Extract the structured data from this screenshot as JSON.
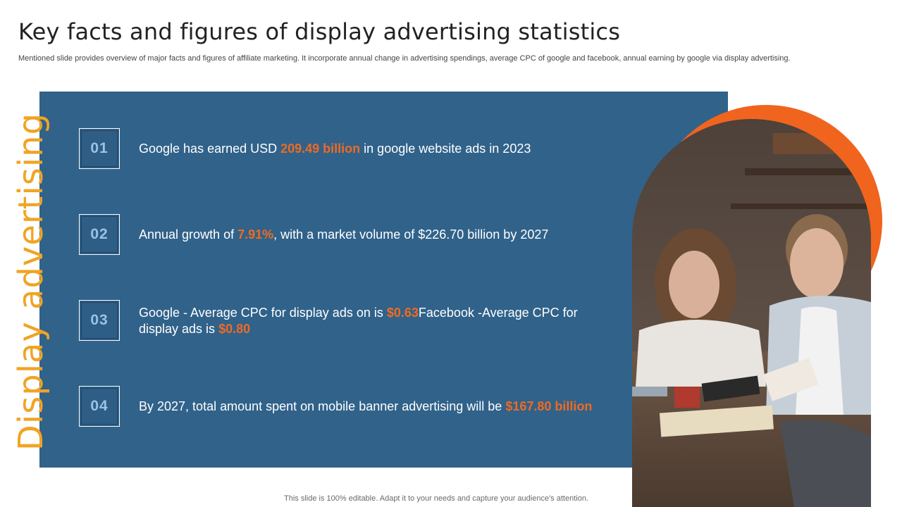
{
  "slide": {
    "title": "Key facts and figures of display advertising statistics",
    "subtitle": "Mentioned slide provides overview of major facts and figures of affiliate marketing. It incorporate annual change in advertising spendings, average CPC of google and facebook, annual earning by google via display advertising.",
    "side_label": "Display advertising",
    "footer": "This slide is 100% editable. Adapt it to your needs and capture your audience's attention."
  },
  "facts": [
    {
      "number": "01",
      "part1": "Google has earned USD ",
      "hl1": "209.49 billion",
      "part2": " in google website ads in 2023",
      "hl2": "",
      "part3": ""
    },
    {
      "number": "02",
      "part1": "Annual growth of ",
      "hl1": "7.91%",
      "part2": ", with a market volume of $226.70 billion by 2027",
      "hl2": "",
      "part3": ""
    },
    {
      "number": "03",
      "part1": "Google - Average CPC for display ads on is ",
      "hl1": "$0.63",
      "part2": "Facebook -Average CPC for display ads is ",
      "hl2": "$0.80",
      "part3": ""
    },
    {
      "number": "04",
      "part1": "By 2027, total amount spent on mobile banner advertising will be ",
      "hl1": "$167.80 billion",
      "part2": "",
      "hl2": "",
      "part3": ""
    }
  ],
  "colors": {
    "panel": "#30628a",
    "accent_orange": "#f06a22",
    "side_label": "#f0a424",
    "number_text": "#9cc2e4"
  }
}
